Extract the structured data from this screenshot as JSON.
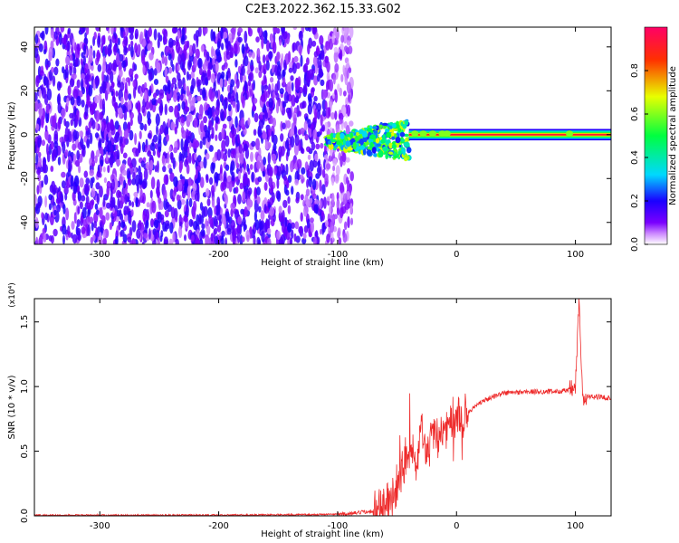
{
  "title": "C2E3.2022.362.15.33.G02",
  "chart_data": [
    {
      "type": "heatmap",
      "xlabel": "Height of straight line (km)",
      "ylabel": "Frequency (Hz)",
      "xlim": [
        -355,
        130
      ],
      "ylim": [
        -50,
        49
      ],
      "x_ticks": [
        -300,
        -200,
        -100,
        0,
        100
      ],
      "y_ticks": [
        -40,
        -20,
        0,
        20,
        40
      ],
      "colorbar": {
        "label": "Normalized spectral amplitude",
        "range": [
          0,
          1
        ],
        "ticks": [
          "0.0",
          "0.2",
          "0.4",
          "0.6",
          "0.8"
        ],
        "colors": [
          "#ffffff",
          "#cc88ff",
          "#7a00ff",
          "#1a00ff",
          "#00d8ff",
          "#00ff40",
          "#e8ff00",
          "#ff3000",
          "#ff0066"
        ]
      },
      "features": [
        {
          "name": "noise",
          "x_range": [
            -355,
            -88
          ],
          "y_range": [
            -50,
            49
          ],
          "amplitude": [
            0.05,
            0.2
          ]
        },
        {
          "name": "dispersed",
          "x_range": [
            -110,
            -40
          ],
          "y_range": [
            -12,
            4
          ],
          "amplitude": [
            0.2,
            0.7
          ]
        },
        {
          "name": "carrier",
          "x_range": [
            -40,
            130
          ],
          "y_center": 0,
          "amplitude": 1.0
        }
      ]
    },
    {
      "type": "line",
      "xlabel": "Height of straight line (km)",
      "ylabel": "SNR (10 * v/v)",
      "y_multiplier": "(x10⁴)",
      "xlim": [
        -355,
        130
      ],
      "ylim": [
        0,
        1.68
      ],
      "x_ticks": [
        -300,
        -200,
        -100,
        0,
        100
      ],
      "y_ticks": [
        "0.0",
        "0.5",
        "1.0",
        "1.5"
      ],
      "color": "#ee2a2a",
      "series": [
        {
          "x": [
            -355,
            -300,
            -200,
            -120,
            -90,
            -70,
            -55,
            -48,
            -42,
            -38,
            -34,
            -30,
            -25,
            -20,
            -15,
            -10,
            -5,
            0,
            10,
            20,
            30,
            40,
            60,
            80,
            95,
            100,
            103,
            106,
            110,
            120,
            130
          ],
          "y": [
            0.005,
            0.005,
            0.006,
            0.01,
            0.015,
            0.04,
            0.12,
            0.3,
            0.45,
            0.55,
            0.4,
            0.6,
            0.5,
            0.65,
            0.6,
            0.68,
            0.7,
            0.72,
            0.8,
            0.88,
            0.92,
            0.95,
            0.96,
            0.96,
            0.97,
            0.98,
            1.68,
            0.9,
            0.92,
            0.92,
            0.91
          ]
        }
      ]
    }
  ]
}
